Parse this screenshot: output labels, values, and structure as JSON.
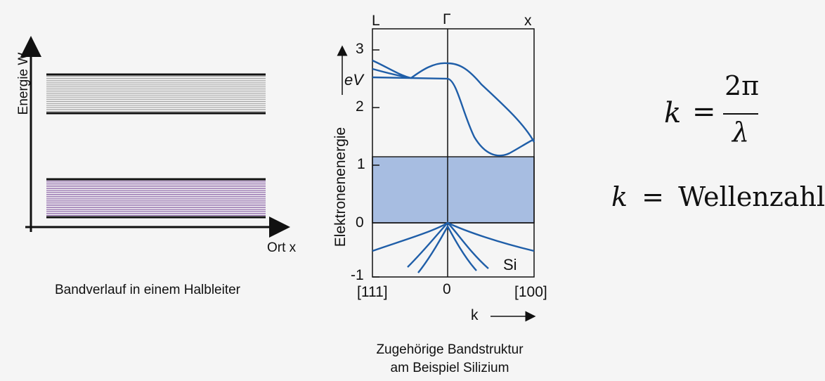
{
  "left_diagram": {
    "y_axis_label": "Energie W",
    "x_axis_label": "Ort x",
    "caption": "Bandverlauf in einem Halbleiter"
  },
  "band_structure": {
    "symmetry_points": [
      "L",
      "Γ",
      "x"
    ],
    "energy_axis_label": "Elektronenenergie",
    "energy_unit": "eV",
    "y_ticks": [
      "3",
      "2",
      "1",
      "0",
      "-1"
    ],
    "x_tick_labels": [
      "[111]",
      "0",
      "[100]"
    ],
    "k_label": "k",
    "material_label": "Si",
    "band_gap_shading": "#a7bde1",
    "caption_line1": "Zugehörige Bandstruktur",
    "caption_line2": "am Beispiel Silizium"
  },
  "formulas": {
    "k_symbol": "k",
    "equals": "=",
    "numerator": "2π",
    "denominator": "λ",
    "wellenzahl": "Wellenzahl"
  }
}
